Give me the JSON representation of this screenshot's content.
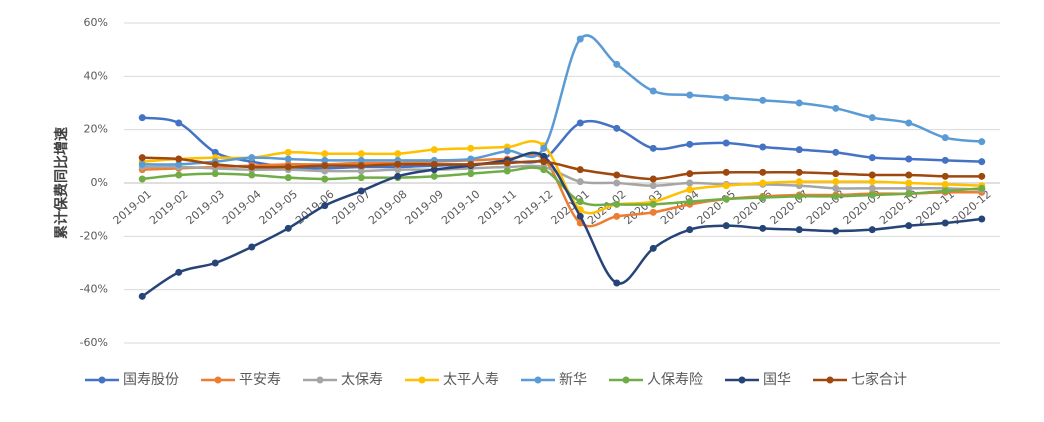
{
  "chart_data": {
    "type": "line",
    "y_label": "累计保费同比增速",
    "categories": [
      "2019-01",
      "2019-02",
      "2019-03",
      "2019-04",
      "2019-05",
      "2019-06",
      "2019-07",
      "2019-08",
      "2019-09",
      "2019-10",
      "2019-11",
      "2019-12",
      "2020-01",
      "2020-02",
      "2020-03",
      "2020-04",
      "2020-05",
      "2020-06",
      "2020-07",
      "2020-08",
      "2020-09",
      "2020-10",
      "2020-11",
      "2020-12"
    ],
    "series": [
      {
        "name": "国寿股份",
        "color": "#4472c4",
        "values": [
          24.5,
          22.5,
          11.5,
          8,
          6,
          5.5,
          6,
          6,
          6.5,
          7,
          8,
          9,
          22.5,
          20.5,
          13,
          14.5,
          15,
          13.5,
          12.5,
          11.5,
          9.5,
          9,
          8.5,
          8
        ]
      },
      {
        "name": "平安寿",
        "color": "#ed7d31",
        "values": [
          5,
          5.5,
          6,
          6.5,
          7,
          7,
          7.5,
          7.5,
          8,
          8.5,
          9,
          9,
          -15,
          -12.5,
          -11,
          -8,
          -6,
          -5,
          -4.5,
          -4.5,
          -4,
          -4,
          -3.5,
          -3.5
        ]
      },
      {
        "name": "太保寿",
        "color": "#a5a5a5",
        "values": [
          6,
          6,
          5.5,
          5,
          5,
          4.5,
          4.5,
          5,
          5,
          5.5,
          6,
          6,
          0.5,
          0,
          -1,
          0,
          -0.5,
          -0.5,
          -1,
          -2,
          -2,
          -2,
          -2,
          -2.5
        ]
      },
      {
        "name": "太平人寿",
        "color": "#ffc000",
        "values": [
          8,
          9,
          9.5,
          9.5,
          11.5,
          11,
          11,
          11,
          12.5,
          13,
          13.5,
          14,
          -10,
          -8,
          -7,
          -2.5,
          -1,
          0,
          0.5,
          0.5,
          0.5,
          0,
          -0.5,
          -1
        ]
      },
      {
        "name": "新华",
        "color": "#5b9bd5",
        "values": [
          7,
          7,
          8,
          9.5,
          9,
          8.5,
          8.5,
          8.5,
          8.5,
          9,
          12,
          13,
          54,
          44.5,
          34.5,
          33,
          32,
          31,
          30,
          28,
          24.5,
          22.5,
          17,
          15.5
        ]
      },
      {
        "name": "人保寿险",
        "color": "#70ad47",
        "values": [
          1.5,
          3,
          3.5,
          3,
          2,
          1.5,
          2,
          2,
          2.5,
          3.5,
          4.5,
          5,
          -7,
          -8,
          -8,
          -7,
          -6,
          -5.5,
          -5,
          -5,
          -4.5,
          -4,
          -3,
          -2
        ]
      },
      {
        "name": "国华",
        "color": "#264478",
        "values": [
          -42.5,
          -33.5,
          -30,
          -24,
          -17,
          -8.5,
          -3,
          2.5,
          5,
          6.5,
          8.5,
          10,
          -12.5,
          -37.5,
          -24.5,
          -17.5,
          -16,
          -17,
          -17.5,
          -18,
          -17.5,
          -16,
          -15,
          -13.5
        ]
      },
      {
        "name": "七家合计",
        "color": "#9e480e",
        "values": [
          9.5,
          9,
          7,
          6,
          6,
          6.5,
          6.5,
          7,
          7,
          7,
          7.5,
          8,
          5,
          3,
          1.5,
          3.5,
          4,
          4,
          4,
          3.5,
          3,
          3,
          2.5,
          2.5
        ]
      }
    ],
    "ylim": [
      -60,
      60
    ],
    "yticks": [
      {
        "value": -60,
        "label": "-60%"
      },
      {
        "value": -40,
        "label": "-40%"
      },
      {
        "value": -20,
        "label": "-20%"
      },
      {
        "value": 0,
        "label": "0%"
      },
      {
        "value": 20,
        "label": "20%"
      },
      {
        "value": 40,
        "label": "40%"
      },
      {
        "value": 60,
        "label": "60%"
      }
    ],
    "grid": true,
    "legend": "bottom"
  }
}
